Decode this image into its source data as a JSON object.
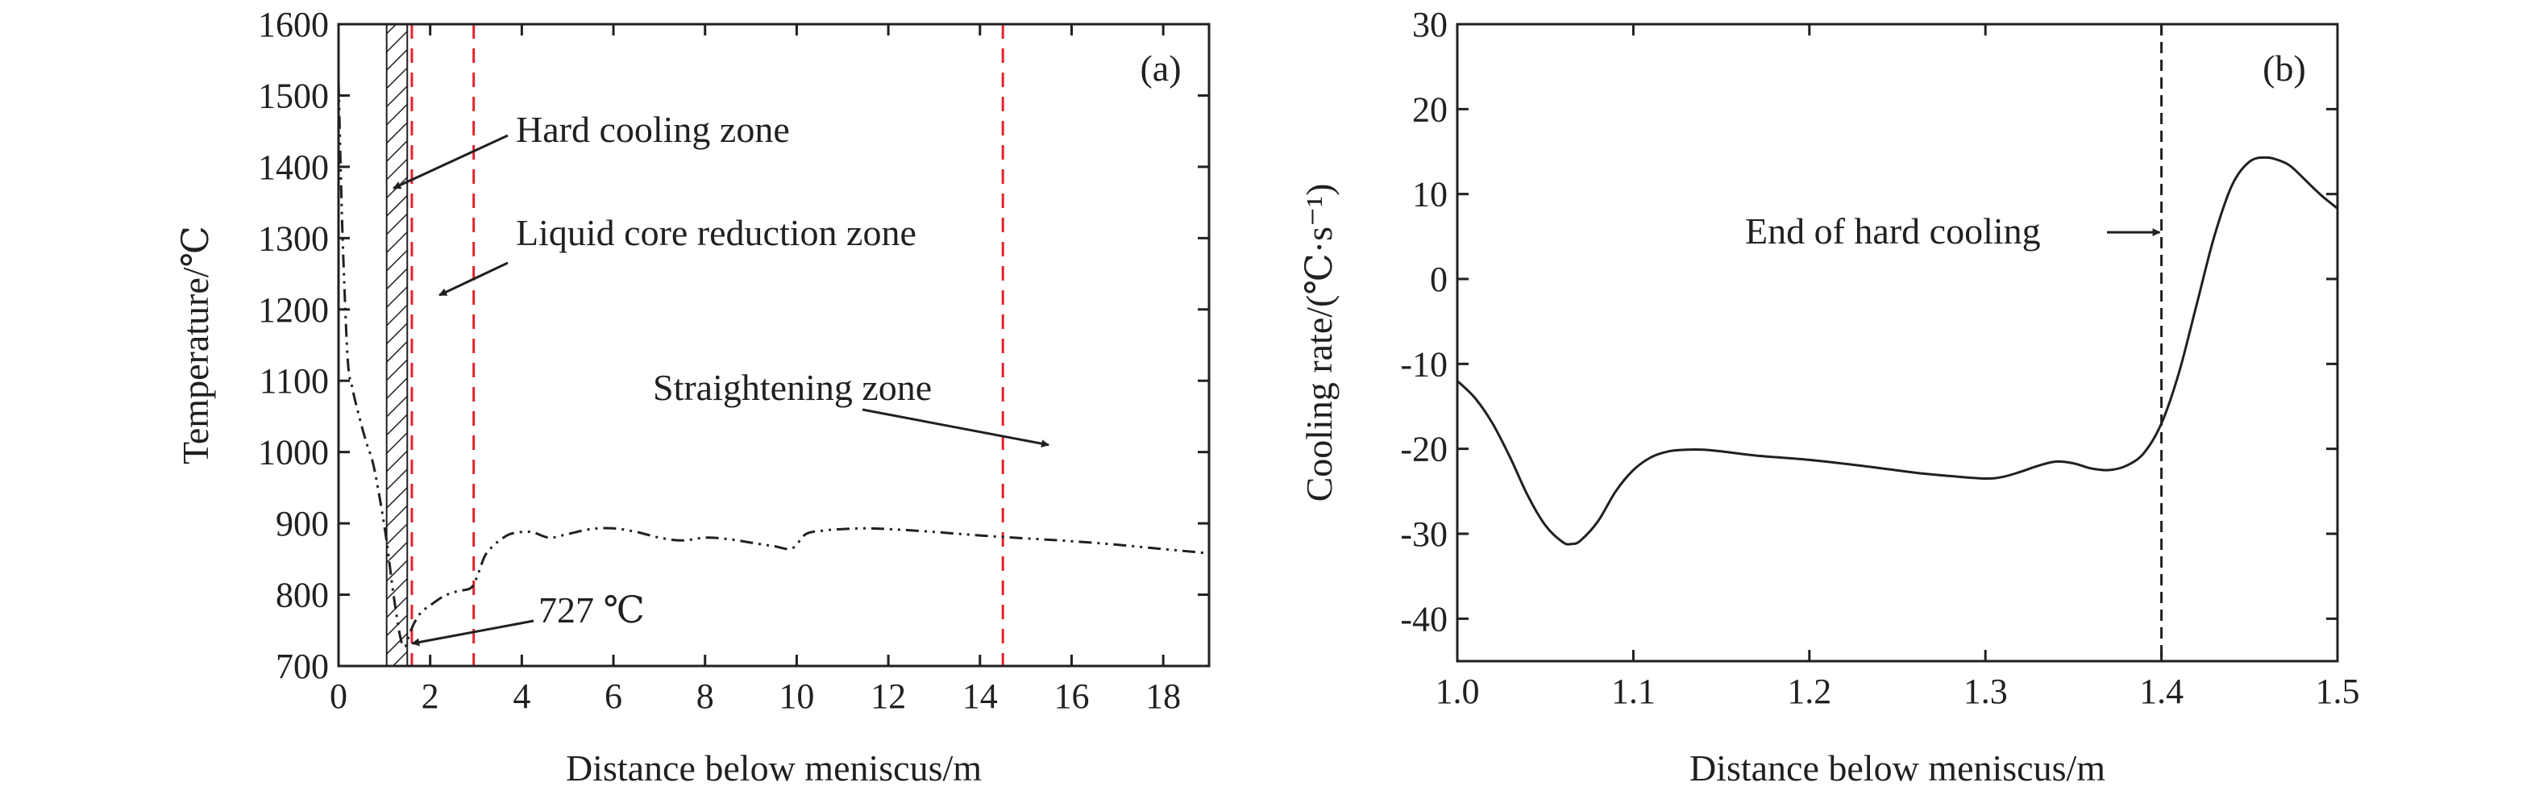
{
  "chart_data": [
    {
      "panel": "(a)",
      "type": "line",
      "xlabel": "Distance below meniscus/m",
      "ylabel": "Temperature/℃",
      "xlim": [
        0,
        19
      ],
      "ylim": [
        700,
        1600
      ],
      "xticks": [
        0,
        2,
        4,
        6,
        8,
        10,
        12,
        14,
        16,
        18
      ],
      "yticks": [
        700,
        800,
        900,
        1000,
        1100,
        1200,
        1300,
        1400,
        1500,
        1600
      ],
      "grid": false,
      "line_style": "dash-dot-dot",
      "series": [
        {
          "x": [
            0,
            0.05,
            0.1,
            0.2,
            0.3,
            0.45,
            0.6,
            0.75,
            0.9,
            1.05,
            1.2,
            1.35,
            1.45,
            1.55,
            1.65,
            1.8,
            2.0,
            2.3,
            2.6,
            2.9,
            3.05,
            3.2,
            3.4,
            3.6,
            3.8,
            4.2,
            4.6,
            5.0,
            5.5,
            6.0,
            6.5,
            7.0,
            7.5,
            8.0,
            8.5,
            9.0,
            9.5,
            9.9,
            10.2,
            10.6,
            11.0,
            11.5,
            12.0,
            13.0,
            14.0,
            15.0,
            16.0,
            17.0,
            18.0,
            19.0
          ],
          "y": [
            1520,
            1390,
            1280,
            1130,
            1090,
            1050,
            1015,
            985,
            935,
            875,
            800,
            740,
            727,
            745,
            760,
            775,
            785,
            798,
            805,
            810,
            830,
            855,
            870,
            880,
            886,
            888,
            880,
            885,
            892,
            893,
            888,
            880,
            876,
            880,
            878,
            873,
            868,
            865,
            885,
            890,
            892,
            893,
            892,
            888,
            883,
            879,
            875,
            870,
            864,
            858
          ]
        }
      ],
      "zone_lines_x": [
        1.6,
        2.95,
        14.5
      ],
      "hatched_region_x": [
        1.05,
        1.5
      ],
      "annotations": [
        {
          "text": "Hard cooling zone",
          "x": 1.2,
          "y": 1370
        },
        {
          "text": "Liquid core reduction zone",
          "x": 2.2,
          "y": 1220
        },
        {
          "text": "Straightening zone",
          "x": 15.5,
          "y": 1010
        },
        {
          "text": "727 ℃",
          "x": 1.5,
          "y": 727
        }
      ]
    },
    {
      "panel": "(b)",
      "type": "line",
      "xlabel": "Distance below meniscus/m",
      "ylabel": "Cooling rate/(℃·s⁻¹)",
      "xlim": [
        1.0,
        1.5
      ],
      "ylim": [
        -45,
        30
      ],
      "xticks": [
        1.0,
        1.1,
        1.2,
        1.3,
        1.4,
        1.5
      ],
      "yticks": [
        -40,
        -30,
        -20,
        -10,
        0,
        10,
        20,
        30
      ],
      "grid": false,
      "series": [
        {
          "x": [
            1.0,
            1.01,
            1.02,
            1.03,
            1.04,
            1.05,
            1.06,
            1.065,
            1.07,
            1.08,
            1.09,
            1.1,
            1.11,
            1.12,
            1.13,
            1.14,
            1.15,
            1.17,
            1.2,
            1.23,
            1.26,
            1.28,
            1.3,
            1.31,
            1.32,
            1.33,
            1.34,
            1.35,
            1.36,
            1.37,
            1.38,
            1.39,
            1.4,
            1.41,
            1.42,
            1.43,
            1.44,
            1.45,
            1.46,
            1.47,
            1.475,
            1.48,
            1.49,
            1.5
          ],
          "y": [
            -12,
            -14,
            -17,
            -21,
            -25.5,
            -29,
            -31,
            -31.2,
            -30.8,
            -28.5,
            -25,
            -22.5,
            -21,
            -20.3,
            -20.1,
            -20.1,
            -20.3,
            -20.8,
            -21.3,
            -22.0,
            -22.8,
            -23.2,
            -23.5,
            -23.3,
            -22.7,
            -22.0,
            -21.5,
            -21.7,
            -22.3,
            -22.5,
            -22.0,
            -20.5,
            -17,
            -11,
            -3,
            5,
            11,
            13.8,
            14.3,
            13.7,
            13.0,
            12.0,
            10.0,
            8.3
          ]
        }
      ],
      "marker_line_x": 1.4,
      "annotations": [
        {
          "text": "End of hard cooling",
          "x": 1.4,
          "y": 5.5
        }
      ]
    }
  ]
}
